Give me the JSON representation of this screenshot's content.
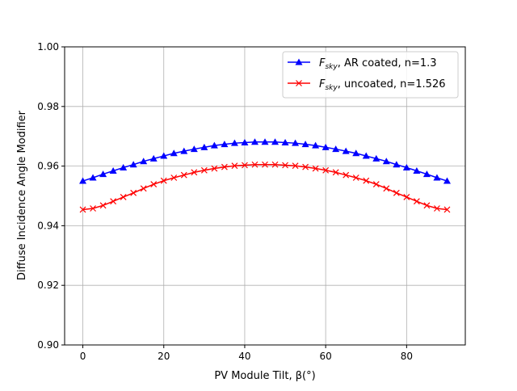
{
  "chart_data": {
    "type": "line",
    "title": "",
    "xlabel": "PV Module Tilt, β(°)",
    "ylabel": "Diffuse Incidence Angle Modifier",
    "xlim": [
      -4.5,
      94.5
    ],
    "ylim": [
      0.9,
      1.0
    ],
    "xticks": [
      0,
      20,
      40,
      60,
      80
    ],
    "xtick_labels": [
      "0",
      "20",
      "40",
      "60",
      "80"
    ],
    "yticks": [
      0.9,
      0.92,
      0.94,
      0.96,
      0.98,
      1.0
    ],
    "ytick_labels": [
      "0.90",
      "0.92",
      "0.94",
      "0.96",
      "0.98",
      "1.00"
    ],
    "grid": true,
    "legend_position": "top-right",
    "x": [
      0,
      2.5,
      5,
      7.5,
      10,
      12.5,
      15,
      17.5,
      20,
      22.5,
      25,
      27.5,
      30,
      32.5,
      35,
      37.5,
      40,
      42.5,
      45,
      47.5,
      50,
      52.5,
      55,
      57.5,
      60,
      62.5,
      65,
      67.5,
      70,
      72.5,
      75,
      77.5,
      80,
      82.5,
      85,
      87.5,
      90
    ],
    "series": [
      {
        "name_main": "F",
        "name_sub": "sky",
        "name_rest": ", AR coated, n=1.3",
        "color": "#0000ff",
        "marker": "triangle",
        "values": [
          0.955,
          0.9561,
          0.9573,
          0.9584,
          0.9595,
          0.9605,
          0.9616,
          0.9625,
          0.9634,
          0.9643,
          0.965,
          0.9657,
          0.9663,
          0.9669,
          0.9673,
          0.9677,
          0.9679,
          0.9681,
          0.9681,
          0.9681,
          0.9679,
          0.9677,
          0.9673,
          0.9669,
          0.9663,
          0.9657,
          0.965,
          0.9643,
          0.9634,
          0.9625,
          0.9616,
          0.9605,
          0.9595,
          0.9584,
          0.9573,
          0.9561,
          0.955
        ]
      },
      {
        "name_main": "F",
        "name_sub": "sky",
        "name_rest": ", uncoated, n=1.526",
        "color": "#ff0000",
        "marker": "x",
        "values": [
          0.9454,
          0.9458,
          0.9468,
          0.9482,
          0.9496,
          0.951,
          0.9525,
          0.9539,
          0.9551,
          0.9561,
          0.957,
          0.9579,
          0.9586,
          0.9592,
          0.9597,
          0.9601,
          0.9603,
          0.9605,
          0.9605,
          0.9605,
          0.9603,
          0.9601,
          0.9597,
          0.9592,
          0.9586,
          0.9579,
          0.957,
          0.9561,
          0.9551,
          0.9539,
          0.9525,
          0.951,
          0.9496,
          0.9482,
          0.9468,
          0.9458,
          0.9454
        ]
      }
    ]
  }
}
